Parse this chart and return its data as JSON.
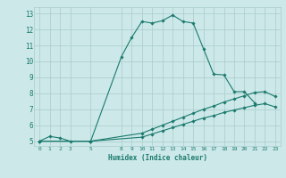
{
  "xlabel": "Humidex (Indice chaleur)",
  "bg_color": "#cce8e8",
  "grid_color": "#aacccc",
  "line_color": "#1a7a6e",
  "xlim": [
    -0.5,
    23.5
  ],
  "ylim": [
    4.7,
    13.4
  ],
  "xticks": [
    0,
    1,
    2,
    3,
    5,
    8,
    9,
    10,
    11,
    12,
    13,
    14,
    15,
    16,
    17,
    18,
    19,
    20,
    21,
    22,
    23
  ],
  "yticks": [
    5,
    6,
    7,
    8,
    9,
    10,
    11,
    12,
    13
  ],
  "line1_x": [
    0,
    1,
    2,
    3,
    5,
    8,
    9,
    10,
    11,
    12,
    13,
    14,
    15,
    16,
    17,
    18,
    19,
    20,
    21
  ],
  "line1_y": [
    5.0,
    5.3,
    5.2,
    5.0,
    5.0,
    10.3,
    11.5,
    12.5,
    12.4,
    12.55,
    12.9,
    12.5,
    12.4,
    10.8,
    9.2,
    9.15,
    8.1,
    8.1,
    7.4
  ],
  "line2_x": [
    0,
    5,
    10,
    11,
    12,
    13,
    14,
    15,
    16,
    17,
    18,
    19,
    20,
    21,
    22,
    23
  ],
  "line2_y": [
    5.0,
    5.0,
    5.5,
    5.75,
    6.0,
    6.25,
    6.5,
    6.75,
    7.0,
    7.2,
    7.45,
    7.65,
    7.85,
    8.05,
    8.1,
    7.8
  ],
  "line3_x": [
    0,
    5,
    10,
    11,
    12,
    13,
    14,
    15,
    16,
    17,
    18,
    19,
    20,
    21,
    22,
    23
  ],
  "line3_y": [
    5.0,
    5.0,
    5.25,
    5.45,
    5.65,
    5.85,
    6.05,
    6.25,
    6.45,
    6.6,
    6.8,
    6.95,
    7.1,
    7.25,
    7.35,
    7.15
  ]
}
